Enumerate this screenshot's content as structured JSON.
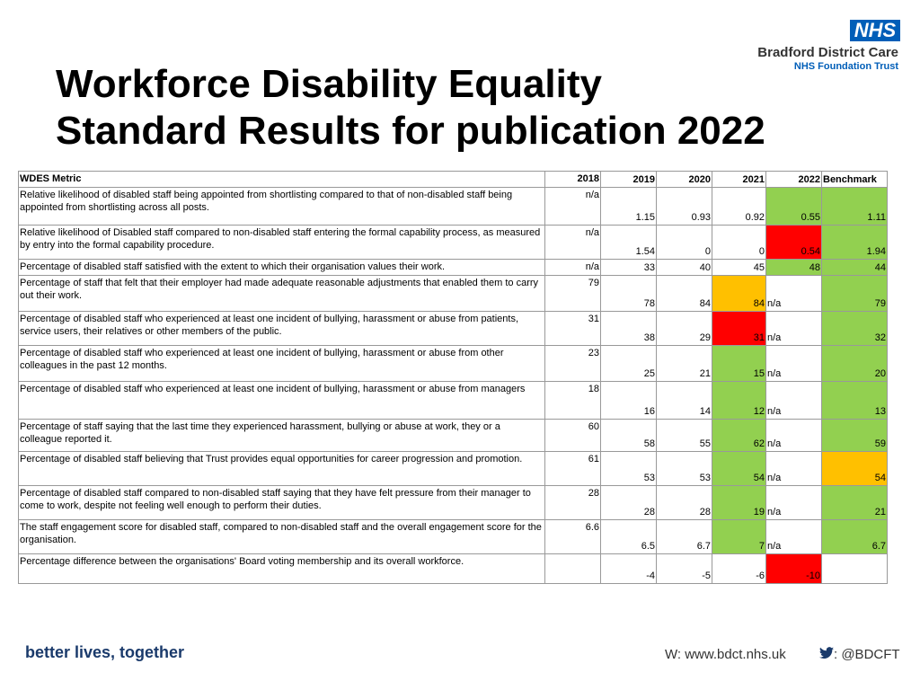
{
  "header": {
    "title": [
      "Workforce Disability Equality",
      "Standard Results for publication 2022"
    ],
    "logo": {
      "badge": "NHS",
      "org": "Bradford District Care",
      "trust": "NHS Foundation Trust"
    }
  },
  "table": {
    "columns": [
      "WDES Metric",
      "2018",
      "2019",
      "2020",
      "2021",
      "2022",
      "Benchmark"
    ],
    "rows": [
      {
        "metric": "Relative likelihood of disabled staff being appointed from shortlisting compared to that of non-disabled staff being appointed from shortlisting across all posts.",
        "cells": [
          "n/a",
          1.15,
          0.93,
          0.92,
          0.55,
          1.11
        ],
        "colors": [
          null,
          null,
          null,
          null,
          "#92d050",
          "#92d050"
        ]
      },
      {
        "metric": "Relative likelihood of Disabled staff compared to non-disabled staff entering the formal capability process, as measured by entry into the formal capability procedure.",
        "cells": [
          "n/a",
          1.54,
          0,
          0,
          0.54,
          1.94
        ],
        "colors": [
          null,
          null,
          null,
          null,
          "#ff0000",
          "#92d050"
        ]
      },
      {
        "metric": "Percentage of disabled staff satisfied with the extent to which their organisation values their work.",
        "cells": [
          "n/a",
          33,
          40,
          45,
          48,
          44
        ],
        "colors": [
          null,
          null,
          null,
          null,
          "#92d050",
          "#92d050"
        ]
      },
      {
        "metric": "Percentage of staff that felt that their employer had made adequate reasonable adjustments that enabled them to carry out their work.",
        "cells": [
          79,
          78,
          84,
          84,
          "n/a",
          79
        ],
        "colors": [
          null,
          null,
          null,
          "#ffc000",
          null,
          "#92d050"
        ]
      },
      {
        "metric": "Percentage of disabled staff who experienced at least one incident of bullying, harassment or abuse from patients, service users, their relatives or other members of the public.",
        "cells": [
          31,
          38,
          29,
          31,
          "n/a",
          32
        ],
        "colors": [
          null,
          null,
          null,
          "#ff0000",
          null,
          "#92d050"
        ]
      },
      {
        "metric": "Percentage of disabled staff who experienced at least one incident of bullying, harassment or abuse from other colleagues in the past 12 months.",
        "cells": [
          23,
          25,
          21,
          15,
          "n/a",
          20
        ],
        "colors": [
          null,
          null,
          null,
          "#92d050",
          null,
          "#92d050"
        ]
      },
      {
        "metric": "Percentage of disabled staff who experienced at least one incident of bullying, harassment or abuse from managers",
        "cells": [
          18,
          16,
          14,
          12,
          "n/a",
          13
        ],
        "colors": [
          null,
          null,
          null,
          "#92d050",
          null,
          "#92d050"
        ]
      },
      {
        "metric": "Percentage of staff saying that the last time they experienced harassment, bullying or abuse at work, they or a colleague reported it.",
        "cells": [
          60,
          58,
          55,
          62,
          "n/a",
          59
        ],
        "colors": [
          null,
          null,
          null,
          "#92d050",
          null,
          "#92d050"
        ]
      },
      {
        "metric": "Percentage of disabled staff believing that Trust provides equal opportunities for career progression and promotion.",
        "cells": [
          61,
          53,
          53,
          54,
          "n/a",
          54
        ],
        "colors": [
          null,
          null,
          null,
          "#92d050",
          null,
          "#ffc000"
        ]
      },
      {
        "metric": "Percentage of disabled staff compared to non-disabled staff saying that they have felt pressure from their manager to come to work, despite not feeling well enough to perform their duties.",
        "cells": [
          28,
          28,
          28,
          19,
          "n/a",
          21
        ],
        "colors": [
          null,
          null,
          null,
          "#92d050",
          null,
          "#92d050"
        ]
      },
      {
        "metric": "The staff engagement score for disabled staff, compared to non-disabled staff and the overall engagement score for the organisation.",
        "cells": [
          6.6,
          6.5,
          6.7,
          7,
          "n/a",
          6.7
        ],
        "colors": [
          null,
          null,
          null,
          "#92d050",
          null,
          "#92d050"
        ]
      },
      {
        "metric": "Percentage difference between the organisations' Board voting membership and its overall workforce.",
        "cells": [
          null,
          -4,
          -5,
          -6,
          -10,
          null
        ],
        "colors": [
          null,
          null,
          null,
          null,
          "#ff0000",
          null
        ]
      }
    ]
  },
  "footer": {
    "tagline": "better lives, together",
    "web": "W: www.bdct.nhs.uk",
    "twitter": ": @BDCFT"
  }
}
